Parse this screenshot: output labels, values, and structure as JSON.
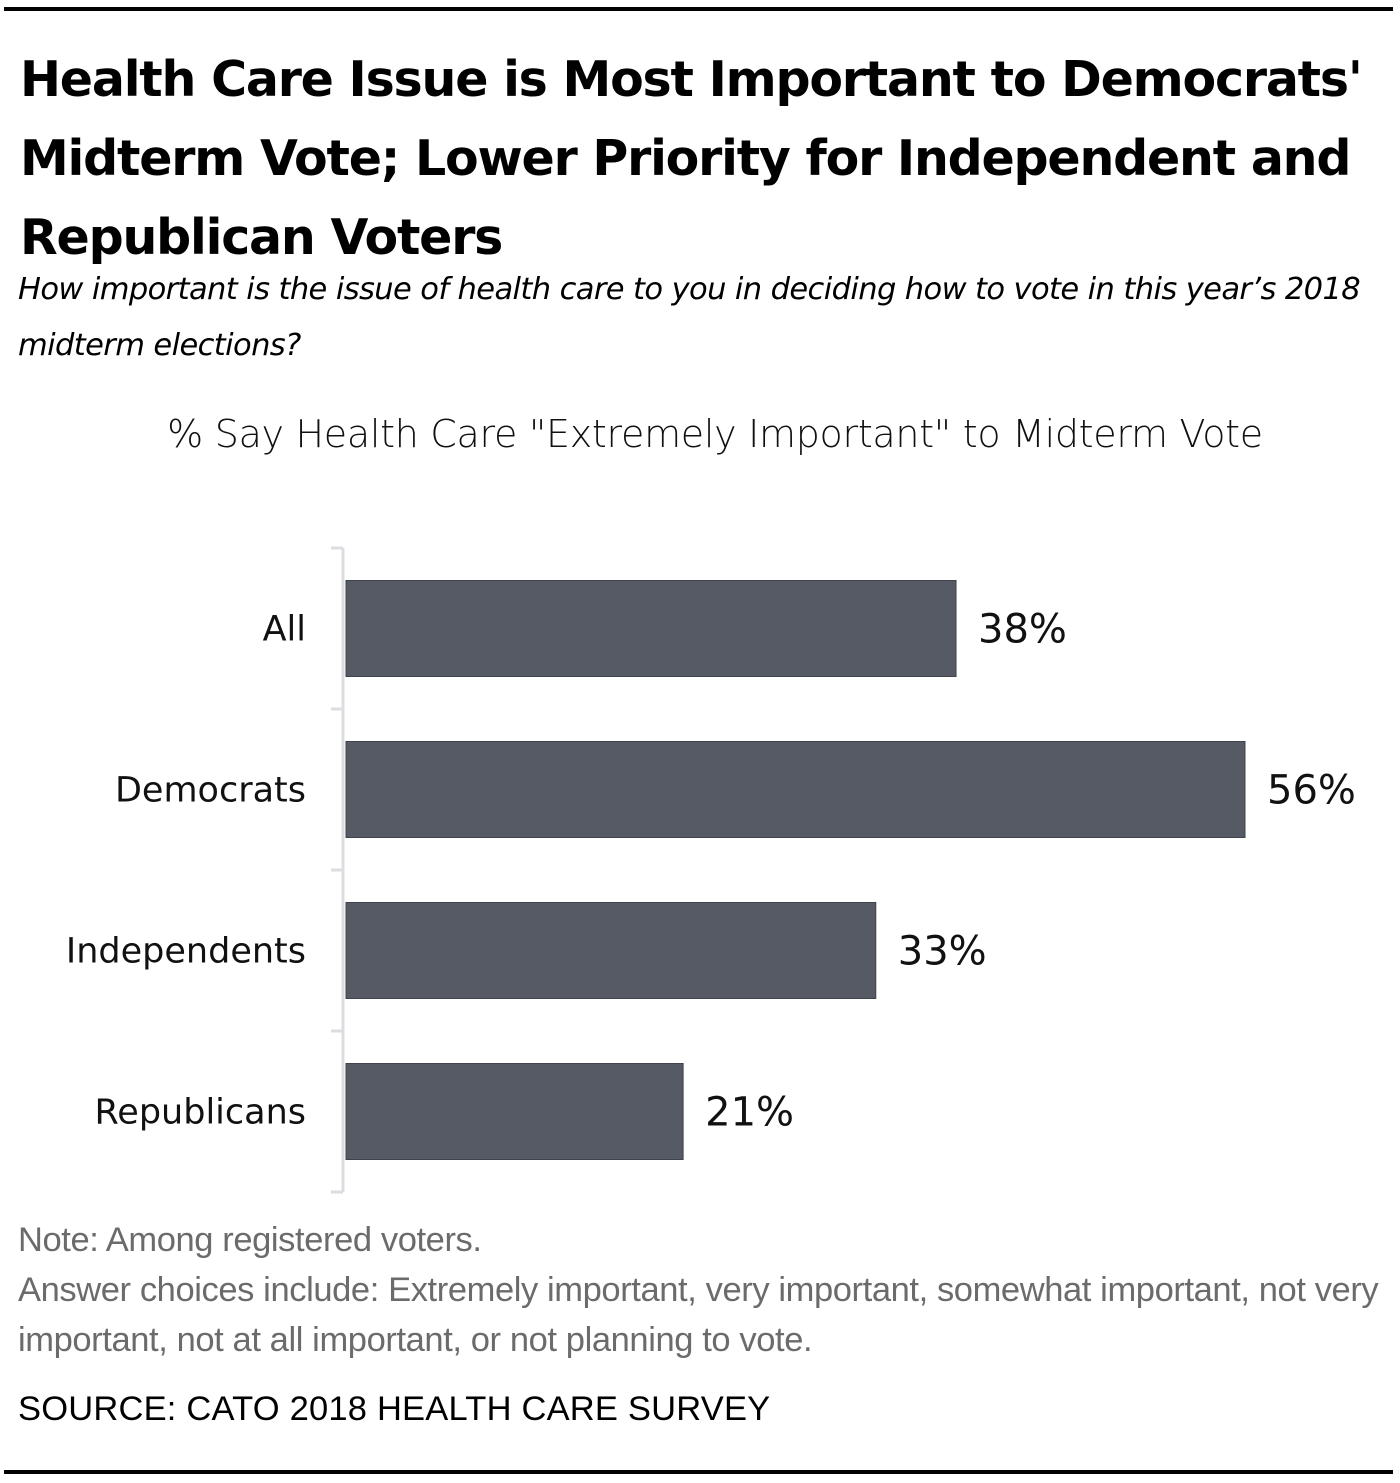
{
  "header": {
    "title": "Health Care Issue is Most Important to Democrats' Midterm Vote; Lower Priority for Independent and Republican Voters",
    "subtitle": "How important is the issue of health care to you in deciding how to vote in this year’s 2018 midterm elections?"
  },
  "chart_data": {
    "type": "bar",
    "orientation": "horizontal",
    "title": "% Say Health Care \"Extremely Important\" to Midterm Vote",
    "categories": [
      "All",
      "Democrats",
      "Independents",
      "Republicans"
    ],
    "values": [
      38,
      56,
      33,
      21
    ],
    "value_labels": [
      "38%",
      "56%",
      "33%",
      "21%"
    ],
    "unit": "%",
    "xlabel": "",
    "ylabel": "",
    "xlim": [
      0,
      56
    ],
    "grid": false,
    "legend": "none",
    "bar_color": "#555a64"
  },
  "footer": {
    "notes": [
      "Note: Among registered voters.",
      "Answer choices include: Extremely important, very important, somewhat important, not very important, not at all important, or not planning to vote."
    ],
    "source": "SOURCE: CATO 2018 HEALTH CARE SURVEY"
  }
}
